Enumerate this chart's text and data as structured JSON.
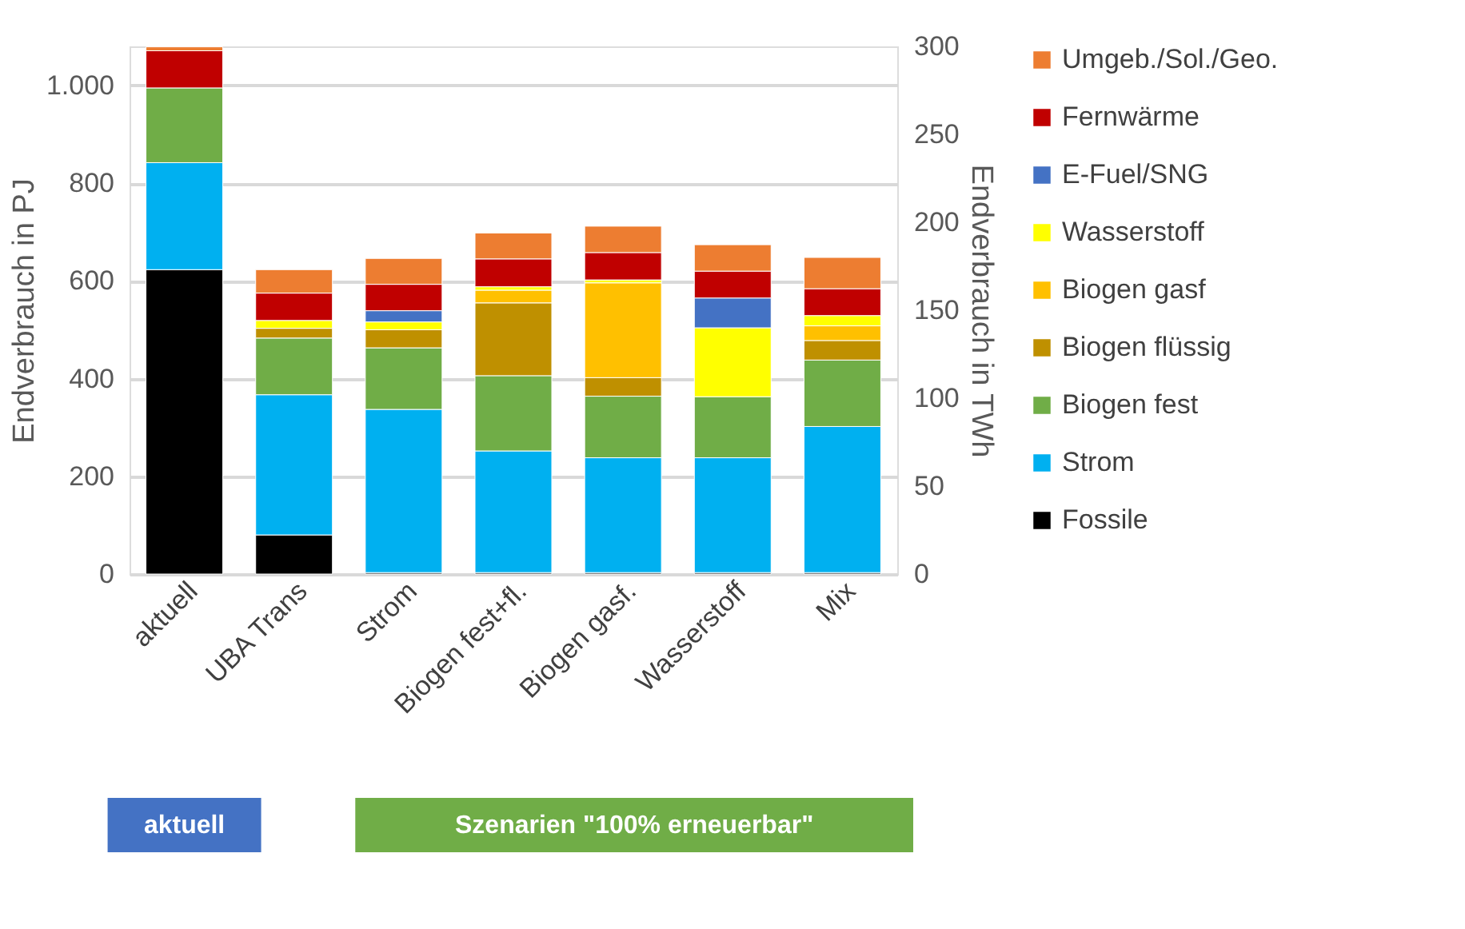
{
  "chart_data": {
    "type": "bar",
    "stacked": true,
    "ylabel": "Endverbrauch in PJ",
    "y2label": "Endverbrauch in TWh",
    "categories": [
      "aktuell",
      "UBA Trans",
      "Strom",
      "Biogen fest+fl.",
      "Biogen gasf.",
      "Wasserstoff",
      "Mix"
    ],
    "series": [
      {
        "name": "Fossile",
        "color": "#000000",
        "values": [
          623,
          80,
          3,
          3,
          3,
          3,
          3
        ]
      },
      {
        "name": "Strom",
        "color": "#00b0f0",
        "values": [
          219,
          287,
          334,
          249,
          235,
          235,
          299
        ]
      },
      {
        "name": "Biogen fest",
        "color": "#70ad47",
        "values": [
          153,
          116,
          126,
          154,
          126,
          125,
          136
        ]
      },
      {
        "name": "Biogen flüssig",
        "color": "#bf9000",
        "values": [
          null,
          20,
          37,
          149,
          38,
          null,
          40
        ]
      },
      {
        "name": "Biogen gasf",
        "color": "#ffc000",
        "values": [
          null,
          null,
          null,
          26,
          194,
          null,
          30
        ]
      },
      {
        "name": "Wasserstoff",
        "color": "#ffff00",
        "values": [
          null,
          16,
          16,
          7,
          6,
          141,
          21
        ]
      },
      {
        "name": "E-Fuel/SNG",
        "color": "#4472c4",
        "values": [
          null,
          null,
          23,
          null,
          null,
          61,
          null
        ]
      },
      {
        "name": "Fernwärme",
        "color": "#c00000",
        "values": [
          76,
          56,
          54,
          57,
          56,
          55,
          55
        ]
      },
      {
        "name": "Umgeb./Sol./Geo.",
        "color": "#ed7d31",
        "values": [
          8,
          48,
          53,
          53,
          54,
          54,
          64
        ]
      }
    ],
    "ylim": [
      0,
      1080
    ],
    "yticks": [
      0,
      200,
      400,
      600,
      800,
      {
        "value": 1000,
        "label": "1.000"
      }
    ],
    "y2lim": [
      0,
      300
    ],
    "y2ticks": [
      0,
      50,
      100,
      150,
      200,
      250,
      300
    ],
    "grid": "y",
    "legend": "right",
    "annotations": [
      "aktuell",
      "Szenarien \"100% erneuerbar\""
    ]
  }
}
